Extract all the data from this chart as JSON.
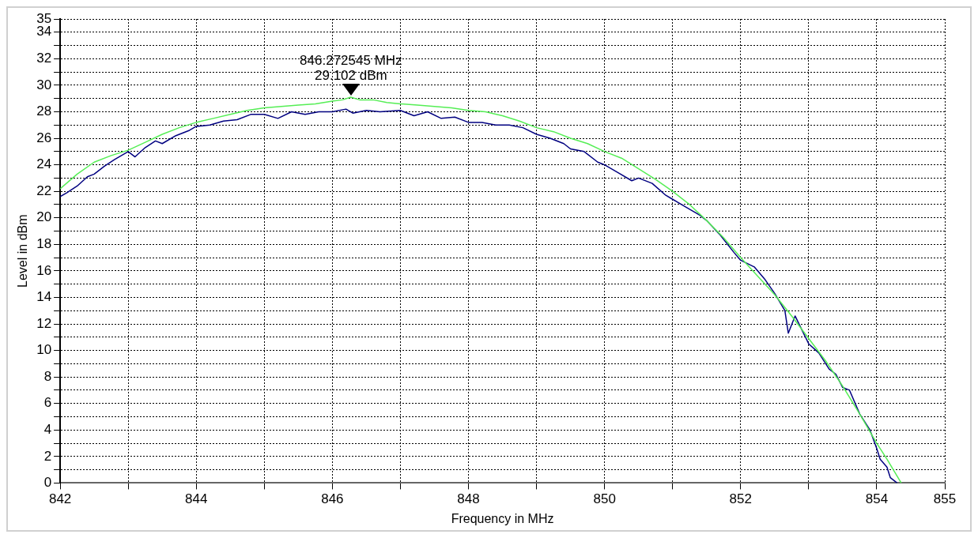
{
  "chart_data": {
    "type": "line",
    "xlabel": "Frequency in MHz",
    "ylabel": "Level in dBm",
    "xlim": [
      842,
      855
    ],
    "xticks": [
      842,
      {
        "value": 843,
        "label": null
      },
      844,
      {
        "value": 845,
        "label": null
      },
      846,
      {
        "value": 847,
        "label": null
      },
      848,
      {
        "value": 849,
        "label": null
      },
      850,
      {
        "value": 851,
        "label": null
      },
      852,
      {
        "value": 853,
        "label": null
      },
      854,
      855
    ],
    "ylim": [
      0,
      35
    ],
    "yticks": [
      0,
      {
        "value": 1,
        "label": null
      },
      2,
      {
        "value": 3,
        "label": null
      },
      4,
      {
        "value": 5,
        "label": null
      },
      6,
      {
        "value": 7,
        "label": null
      },
      8,
      {
        "value": 9,
        "label": null
      },
      10,
      {
        "value": 11,
        "label": null
      },
      12,
      {
        "value": 13,
        "label": null
      },
      14,
      {
        "value": 15,
        "label": null
      },
      16,
      {
        "value": 17,
        "label": null
      },
      18,
      {
        "value": 19,
        "label": null
      },
      20,
      {
        "value": 21,
        "label": null
      },
      22,
      {
        "value": 23,
        "label": null
      },
      24,
      {
        "value": 25,
        "label": null
      },
      26,
      {
        "value": 27,
        "label": null
      },
      28,
      {
        "value": 29,
        "label": null
      },
      30,
      {
        "value": 31,
        "label": null
      },
      32,
      {
        "value": 33,
        "label": null
      },
      34,
      35
    ],
    "grid": true,
    "legend": false,
    "marker": "none",
    "line_style": "solid",
    "annotations": [
      {
        "text": "846.272545 MHz\n29.102 dBm",
        "x": 846.272545,
        "y": 29.102
      }
    ],
    "series": [
      {
        "color": "#55ee55",
        "x": [
          842,
          842.25,
          842.5,
          842.75,
          843,
          843.25,
          843.5,
          843.75,
          844,
          844.25,
          844.5,
          844.75,
          845,
          845.25,
          845.5,
          845.75,
          846,
          846.15,
          846.27,
          846.4,
          846.6,
          846.8,
          847,
          847.25,
          847.5,
          847.75,
          848,
          848.25,
          848.5,
          848.75,
          849,
          849.25,
          849.5,
          849.75,
          850,
          850.25,
          850.5,
          850.75,
          851,
          851.25,
          851.5,
          851.75,
          852,
          852.25,
          852.5,
          852.75,
          853,
          853.25,
          853.5,
          853.75,
          854,
          854.15,
          854.36
        ],
        "values": [
          22.2,
          23.3,
          24.2,
          24.7,
          25.1,
          25.7,
          26.3,
          26.8,
          27.2,
          27.5,
          27.8,
          28.1,
          28.3,
          28.4,
          28.5,
          28.6,
          28.8,
          28.9,
          29.1,
          28.9,
          28.9,
          28.7,
          28.6,
          28.5,
          28.4,
          28.3,
          28.1,
          28.0,
          27.7,
          27.3,
          26.8,
          26.5,
          26.0,
          25.6,
          25.0,
          24.5,
          23.7,
          22.9,
          22.0,
          21.0,
          19.8,
          18.5,
          17.0,
          15.6,
          14.2,
          12.6,
          10.9,
          9.2,
          7.3,
          5.2,
          3.0,
          1.8,
          0
        ]
      },
      {
        "color": "#000080",
        "x": [
          842,
          842.1,
          842.25,
          842.4,
          842.5,
          842.65,
          842.8,
          843,
          843.1,
          843.25,
          843.4,
          843.5,
          843.7,
          843.9,
          844,
          844.2,
          844.4,
          844.6,
          844.8,
          845,
          845.2,
          845.4,
          845.6,
          845.8,
          846,
          846.2,
          846.3,
          846.5,
          846.7,
          847,
          847.2,
          847.4,
          847.6,
          847.8,
          848,
          848.2,
          848.4,
          848.6,
          848.8,
          849,
          849.2,
          849.4,
          849.5,
          849.7,
          849.9,
          850,
          850.2,
          850.4,
          850.5,
          850.7,
          850.9,
          851,
          851.2,
          851.4,
          851.5,
          851.7,
          851.9,
          852,
          852.2,
          852.35,
          852.5,
          852.65,
          852.7,
          852.8,
          853,
          853.15,
          853.3,
          853.4,
          853.5,
          853.6,
          853.75,
          853.9,
          854,
          854.05,
          854.15,
          854.2,
          854.3
        ],
        "values": [
          21.6,
          21.9,
          22.4,
          23.1,
          23.3,
          23.9,
          24.4,
          25.0,
          24.6,
          25.3,
          25.8,
          25.6,
          26.2,
          26.6,
          26.9,
          27.0,
          27.3,
          27.4,
          27.8,
          27.8,
          27.5,
          28.0,
          27.8,
          28.0,
          28.0,
          28.2,
          27.9,
          28.1,
          28.0,
          28.1,
          27.7,
          28.0,
          27.5,
          27.6,
          27.2,
          27.2,
          27.0,
          27.0,
          26.8,
          26.3,
          26.0,
          25.6,
          25.2,
          25.0,
          24.2,
          24.0,
          23.4,
          22.8,
          23.0,
          22.6,
          21.7,
          21.4,
          20.8,
          20.2,
          19.8,
          18.7,
          17.4,
          16.8,
          16.3,
          15.4,
          14.3,
          13.0,
          11.3,
          12.6,
          10.5,
          9.8,
          8.6,
          8.2,
          7.2,
          7.0,
          5.2,
          4.0,
          2.6,
          1.8,
          1.2,
          0.4,
          0
        ]
      }
    ]
  }
}
